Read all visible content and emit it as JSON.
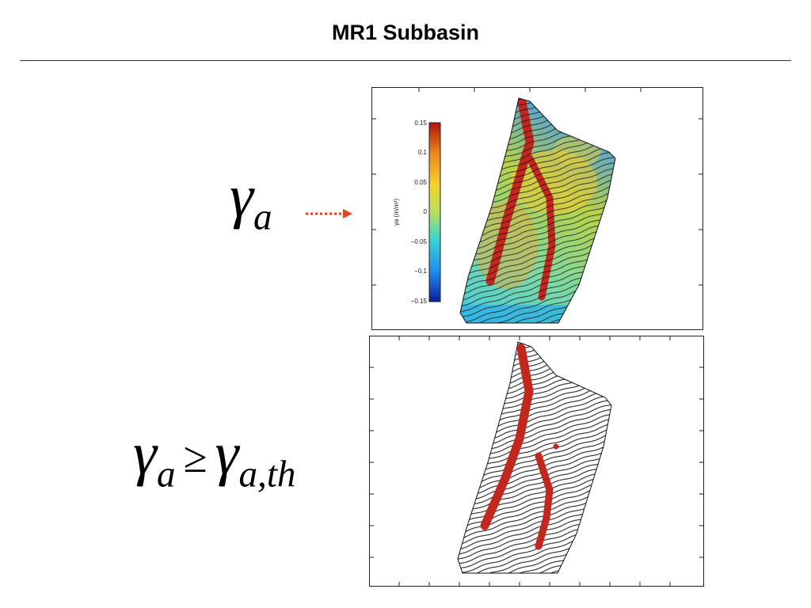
{
  "slide": {
    "title": "MR1 Subbasin"
  },
  "equations": {
    "gamma_a": {
      "symbol": "γ",
      "subscript": "a"
    },
    "threshold": {
      "lhs_symbol": "γ",
      "lhs_subscript": "a",
      "relation": "≥",
      "rhs_symbol": "γ",
      "rhs_subscript": "a,th"
    }
  },
  "colorbar": {
    "label": "γa (m/m²)",
    "ticks": [
      "0.15",
      "0.1",
      "0.05",
      "0",
      "−0.05",
      "−0.1",
      "−0.15"
    ],
    "min": -0.15,
    "max": 0.15
  },
  "colors": {
    "arrow": "#e8431a",
    "channel": "#c1271d",
    "contour": "#111111",
    "map_gradient": [
      "#0b1e9c",
      "#1f8ff0",
      "#39d6d0",
      "#b8e05a",
      "#f2d42a",
      "#f08a1d",
      "#b0150e"
    ]
  }
}
